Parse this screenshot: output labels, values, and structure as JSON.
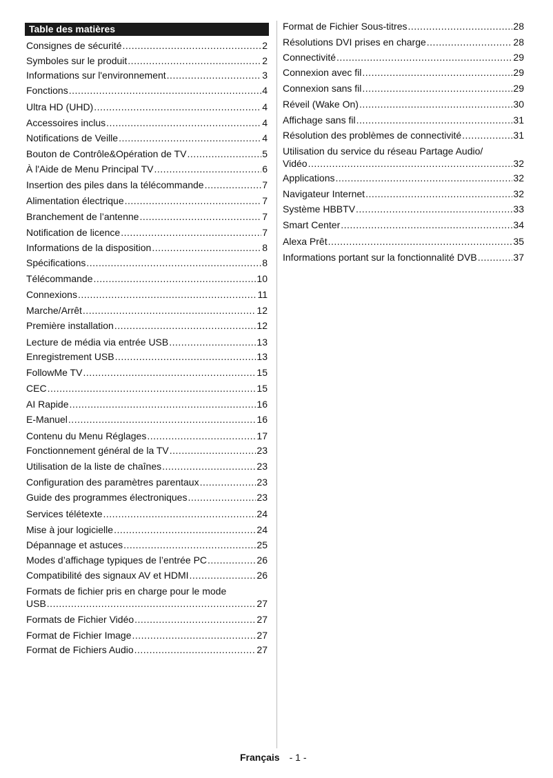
{
  "title": "Table des matières",
  "left": [
    {
      "label": "Consignes de sécurité",
      "page": "2"
    },
    {
      "label": "Symboles sur le produit",
      "page": "2"
    },
    {
      "label": "Informations sur l'environnement",
      "page": "3"
    },
    {
      "label": "Fonctions",
      "page": "4"
    },
    {
      "label": "Ultra HD (UHD)",
      "page": "4"
    },
    {
      "label": "Accessoires inclus",
      "page": "4"
    },
    {
      "label": "Notifications de Veille",
      "page": "4"
    },
    {
      "label": "Bouton de Contrôle&Opération de TV",
      "page": "5"
    },
    {
      "label": "À l'Aide de Menu Principal TV",
      "page": "6"
    },
    {
      "label": "Insertion des piles dans la télécommande",
      "page": "7"
    },
    {
      "label": "Alimentation électrique",
      "page": "7"
    },
    {
      "label": "Branchement de l’antenne",
      "page": "7"
    },
    {
      "label": "Notification de licence",
      "page": "7"
    },
    {
      "label": "Informations de la disposition",
      "page": "8"
    },
    {
      "label": "Spécifications",
      "page": "8"
    },
    {
      "label": "Télécommande",
      "page": "10"
    },
    {
      "label": "Connexions",
      "page": "11"
    },
    {
      "label": "Marche/Arrêt",
      "page": "12"
    },
    {
      "label": "Première installation",
      "page": "12"
    },
    {
      "label": "Lecture de média via entrée USB",
      "page": "13"
    },
    {
      "label": "Enregistrement USB",
      "page": "13"
    },
    {
      "label": "FollowMe TV",
      "page": "15"
    },
    {
      "label": "CEC",
      "page": "15"
    },
    {
      "label": "AI Rapide",
      "page": "16"
    },
    {
      "label": "E-Manuel",
      "page": "16"
    },
    {
      "label": "Contenu du Menu Réglages",
      "page": "17"
    },
    {
      "label": "Fonctionnement général de la TV",
      "page": "23"
    },
    {
      "label": "Utilisation de la liste de chaînes",
      "page": "23"
    },
    {
      "label": "Configuration des paramètres parentaux",
      "page": "23"
    },
    {
      "label": "Guide des programmes électroniques",
      "page": "23"
    },
    {
      "label": "Services télétexte",
      "page": "24"
    },
    {
      "label": "Mise à jour logicielle",
      "page": "24"
    },
    {
      "label": "Dépannage et astuces",
      "page": "25"
    },
    {
      "label": "Modes d’affichage typiques de l’entrée PC",
      "page": "26"
    },
    {
      "label": "Compatibilité des signaux AV et HDMI",
      "page": "26"
    },
    {
      "label": "Formats de fichier pris en charge pour le mode",
      "label2": "USB",
      "page": "27"
    },
    {
      "label": "Formats de Fichier Vidéo",
      "page": "27"
    },
    {
      "label": "Format de Fichier Image",
      "page": "27"
    },
    {
      "label": "Format de Fichiers Audio",
      "page": "27"
    }
  ],
  "right": [
    {
      "label": "Format de Fichier Sous-titres",
      "page": "28"
    },
    {
      "label": "Résolutions DVI prises en charge",
      "page": "28"
    },
    {
      "label": "Connectivité",
      "page": "29"
    },
    {
      "label": "Connexion avec fil",
      "page": "29"
    },
    {
      "label": "Connexion sans fil",
      "page": "29"
    },
    {
      "label": "Réveil (Wake On)",
      "page": "30"
    },
    {
      "label": "Affichage sans fil",
      "page": "31"
    },
    {
      "label": "Résolution des problèmes de connectivité",
      "page": "31"
    },
    {
      "label": "Utilisation du service du réseau Partage Audio/",
      "label2": "Vidéo",
      "page": "32"
    },
    {
      "label": "Applications",
      "page": "32"
    },
    {
      "label": "Navigateur Internet",
      "page": "32"
    },
    {
      "label": "Système HBBTV",
      "page": "33"
    },
    {
      "label": "Smart Center",
      "page": "34"
    },
    {
      "label": "Alexa Prêt",
      "page": "35"
    },
    {
      "label": "Informations portant sur la fonctionnalité DVB",
      "page": "37"
    }
  ],
  "footer": {
    "language": "Français",
    "page": "- 1 -"
  }
}
